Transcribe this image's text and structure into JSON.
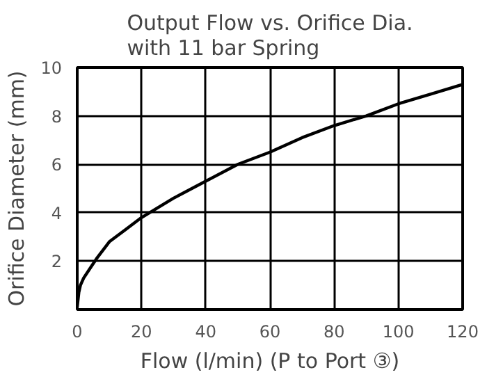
{
  "chart_data": {
    "type": "line",
    "title": "Output Flow vs. Orifice Dia.\nwith 11 bar Spring",
    "xlabel": "Flow (l/min) (P to Port ③)",
    "ylabel": "Orifice Diameter (mm)",
    "series": [
      {
        "color": "#000000",
        "x": [
          0,
          0.5,
          1,
          2,
          4,
          6,
          10,
          15,
          20,
          30,
          40,
          50,
          60,
          70,
          80,
          90,
          100,
          110,
          120
        ],
        "values": [
          0.1,
          0.7,
          1.0,
          1.3,
          1.7,
          2.1,
          2.8,
          3.3,
          3.8,
          4.6,
          5.3,
          6.0,
          6.5,
          7.1,
          7.6,
          8.0,
          8.5,
          8.9,
          9.3
        ]
      }
    ],
    "xlim": [
      0,
      120
    ],
    "ylim": [
      0,
      10
    ],
    "xticks": [
      0,
      20,
      40,
      60,
      80,
      100,
      120
    ],
    "yticks": [
      {
        "value": 0,
        "label": null
      },
      2,
      4,
      6,
      8,
      10
    ],
    "grid": true,
    "marker": "none",
    "line_style": "solid"
  }
}
